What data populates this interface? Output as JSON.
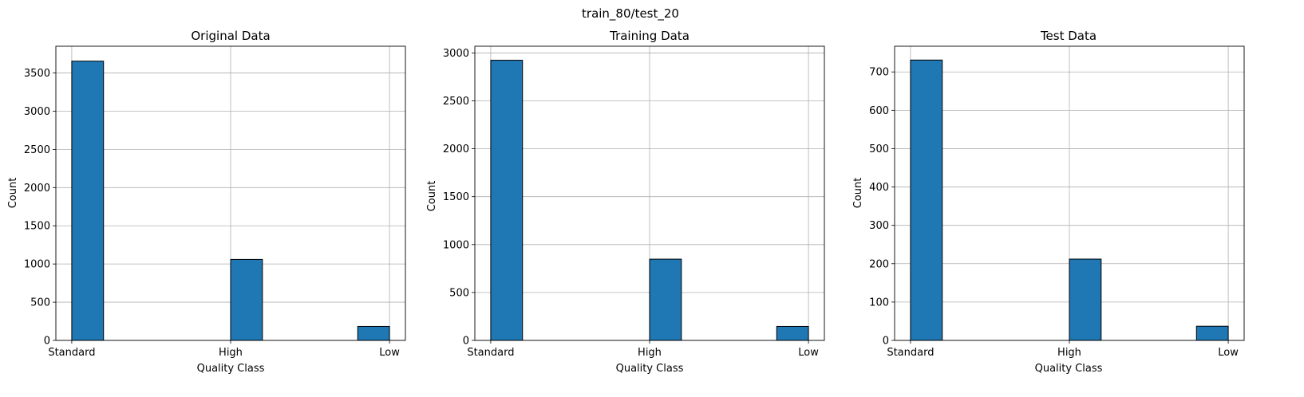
{
  "figure": {
    "suptitle": "train_80/test_20"
  },
  "chart_data": [
    {
      "type": "bar",
      "title": "Original Data",
      "xlabel": "Quality Class",
      "ylabel": "Count",
      "categories": [
        "Standard",
        "High",
        "Low"
      ],
      "values": [
        3655,
        1060,
        183
      ],
      "ylim": [
        0,
        3850
      ],
      "yticks": [
        0,
        500,
        1000,
        1500,
        2000,
        2500,
        3000,
        3500
      ],
      "grid": true,
      "bar_color": "#1f77b4",
      "edge_color": "#000000"
    },
    {
      "type": "bar",
      "title": "Training Data",
      "xlabel": "Quality Class",
      "ylabel": "Count",
      "categories": [
        "Standard",
        "High",
        "Low"
      ],
      "values": [
        2924,
        848,
        146
      ],
      "ylim": [
        0,
        3070
      ],
      "yticks": [
        0,
        500,
        1000,
        1500,
        2000,
        2500,
        3000
      ],
      "grid": true,
      "bar_color": "#1f77b4",
      "edge_color": "#000000"
    },
    {
      "type": "bar",
      "title": "Test Data",
      "xlabel": "Quality Class",
      "ylabel": "Count",
      "categories": [
        "Standard",
        "High",
        "Low"
      ],
      "values": [
        731,
        212,
        37
      ],
      "ylim": [
        0,
        767
      ],
      "yticks": [
        0,
        100,
        200,
        300,
        400,
        500,
        600,
        700
      ],
      "grid": true,
      "bar_color": "#1f77b4",
      "edge_color": "#000000"
    }
  ]
}
